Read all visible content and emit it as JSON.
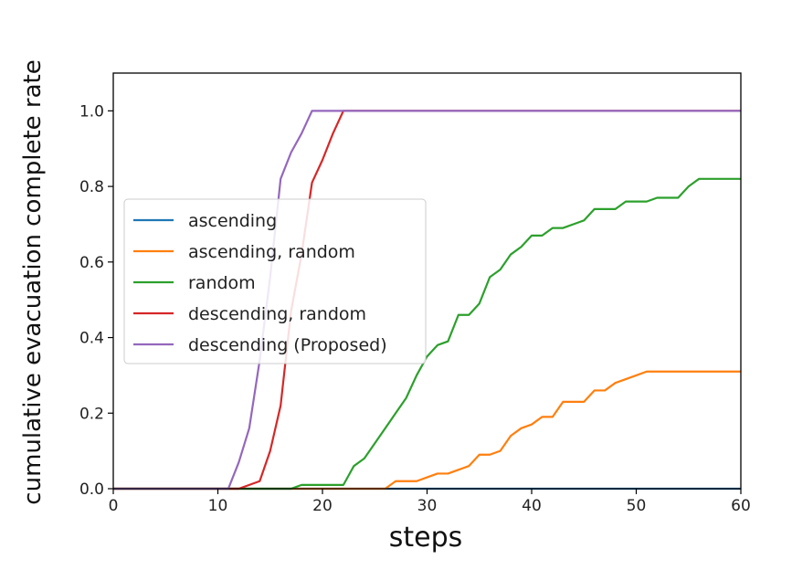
{
  "chart_data": {
    "type": "line",
    "title": "",
    "xlabel": "steps",
    "ylabel": "cumulative evacuation complete rate",
    "xlim": [
      0,
      60
    ],
    "ylim": [
      0,
      1.1
    ],
    "xticks": [
      0,
      10,
      20,
      30,
      40,
      50,
      60
    ],
    "yticks": [
      "0.0",
      "0.2",
      "0.4",
      "0.6",
      "0.8",
      "1.0"
    ],
    "grid": false,
    "legend_position": "center-left",
    "series": [
      {
        "name": "ascending",
        "color": "#1f77b4",
        "points": [
          [
            0,
            0
          ],
          [
            60,
            0
          ]
        ]
      },
      {
        "name": "ascending, random",
        "color": "#ff7f0e",
        "points": [
          [
            0,
            0
          ],
          [
            26,
            0
          ],
          [
            27,
            0.02
          ],
          [
            29,
            0.02
          ],
          [
            30,
            0.03
          ],
          [
            31,
            0.04
          ],
          [
            32,
            0.04
          ],
          [
            33,
            0.05
          ],
          [
            34,
            0.06
          ],
          [
            35,
            0.09
          ],
          [
            36,
            0.09
          ],
          [
            37,
            0.1
          ],
          [
            38,
            0.14
          ],
          [
            39,
            0.16
          ],
          [
            40,
            0.17
          ],
          [
            41,
            0.19
          ],
          [
            42,
            0.19
          ],
          [
            43,
            0.23
          ],
          [
            45,
            0.23
          ],
          [
            46,
            0.26
          ],
          [
            47,
            0.26
          ],
          [
            48,
            0.28
          ],
          [
            50,
            0.3
          ],
          [
            51,
            0.31
          ],
          [
            60,
            0.31
          ]
        ]
      },
      {
        "name": "random",
        "color": "#2ca02c",
        "points": [
          [
            0,
            0
          ],
          [
            17,
            0
          ],
          [
            18,
            0.01
          ],
          [
            22,
            0.01
          ],
          [
            23,
            0.06
          ],
          [
            24,
            0.08
          ],
          [
            25,
            0.12
          ],
          [
            26,
            0.16
          ],
          [
            27,
            0.2
          ],
          [
            28,
            0.24
          ],
          [
            29,
            0.3
          ],
          [
            30,
            0.35
          ],
          [
            31,
            0.38
          ],
          [
            32,
            0.39
          ],
          [
            33,
            0.46
          ],
          [
            34,
            0.46
          ],
          [
            35,
            0.49
          ],
          [
            36,
            0.56
          ],
          [
            37,
            0.58
          ],
          [
            38,
            0.62
          ],
          [
            39,
            0.64
          ],
          [
            40,
            0.67
          ],
          [
            41,
            0.67
          ],
          [
            42,
            0.69
          ],
          [
            43,
            0.69
          ],
          [
            45,
            0.71
          ],
          [
            46,
            0.74
          ],
          [
            48,
            0.74
          ],
          [
            49,
            0.76
          ],
          [
            51,
            0.76
          ],
          [
            52,
            0.77
          ],
          [
            54,
            0.77
          ],
          [
            55,
            0.8
          ],
          [
            56,
            0.82
          ],
          [
            60,
            0.82
          ]
        ]
      },
      {
        "name": "descending, random",
        "color": "#d62728",
        "points": [
          [
            0,
            0
          ],
          [
            12,
            0
          ],
          [
            14,
            0.02
          ],
          [
            15,
            0.1
          ],
          [
            16,
            0.22
          ],
          [
            17,
            0.47
          ],
          [
            18,
            0.62
          ],
          [
            19,
            0.81
          ],
          [
            20,
            0.87
          ],
          [
            21,
            0.94
          ],
          [
            22,
            1.0
          ],
          [
            60,
            1.0
          ]
        ]
      },
      {
        "name": "descending (Proposed)",
        "color": "#9467bd",
        "points": [
          [
            0,
            0
          ],
          [
            11,
            0
          ],
          [
            12,
            0.07
          ],
          [
            13,
            0.16
          ],
          [
            14,
            0.34
          ],
          [
            15,
            0.56
          ],
          [
            16,
            0.82
          ],
          [
            17,
            0.89
          ],
          [
            18,
            0.94
          ],
          [
            19,
            1.0
          ],
          [
            60,
            1.0
          ]
        ]
      }
    ]
  }
}
